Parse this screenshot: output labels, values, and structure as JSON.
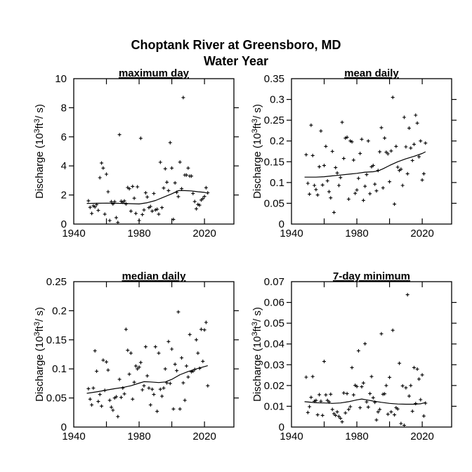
{
  "header": {
    "title_line1": "Choptank River at Greensboro, MD",
    "title_line2": "Water Year"
  },
  "colors": {
    "foreground": "#000000",
    "background": "#ffffff"
  },
  "chart_data": [
    {
      "type": "scatter",
      "title": "maximum day",
      "xlabel": "",
      "ylabel": "Discharge (10³ft³/ s)",
      "xlim": [
        1940,
        2038
      ],
      "ylim": [
        0,
        10
      ],
      "grid": false,
      "legend": "none",
      "marker": "plus",
      "xticks": [
        1960,
        1980,
        2000,
        2020
      ],
      "xtick_labels": [
        {
          "value": 1940,
          "label": "1940"
        },
        {
          "value": 1980,
          "label": "1980"
        },
        {
          "value": 2020,
          "label": "2020"
        }
      ],
      "yticks": [
        2,
        4,
        6,
        8
      ],
      "ytick_labels": [
        {
          "value": 0,
          "label": "0"
        },
        {
          "value": 2,
          "label": "2"
        },
        {
          "value": 4,
          "label": "4"
        },
        {
          "value": 6,
          "label": "6"
        },
        {
          "value": 8,
          "label": "8"
        },
        {
          "value": 10,
          "label": "10"
        }
      ],
      "start_year": 1949,
      "values": [
        1.6,
        1.15,
        0.73,
        1.25,
        1.18,
        1.34,
        0.94,
        3.19,
        4.2,
        3.85,
        0.68,
        3.43,
        2.22,
        0.24,
        1.54,
        1.38,
        1.54,
        0.44,
        0.11,
        6.15,
        1.57,
        1.5,
        1.59,
        1.38,
        2.51,
        2.43,
        0.89,
        2.59,
        1.78,
        0.73,
        2.56,
        0.24,
        5.9,
        0.65,
        0.97,
        2.15,
        1.86,
        1.13,
        1.21,
        0.89,
        2.1,
        0.97,
        1.02,
        0.68,
        4.25,
        1.13,
        2.48,
        3.8,
        2.88,
        2.3,
        5.6,
        3.85,
        0.32,
        2.83,
        2.18,
        1.89,
        4.26,
        2.43,
        8.7,
        3.37,
        3.37,
        3.85,
        3.3,
        3.3,
        2.1,
        1.55,
        1.05,
        1.35,
        1.3,
        1.65,
        1.75,
        1.9,
        2.5,
        2.15
      ],
      "trend_line": [
        [
          1948,
          1.42
        ],
        [
          1955,
          1.43
        ],
        [
          1960,
          1.44
        ],
        [
          1965,
          1.43
        ],
        [
          1970,
          1.42
        ],
        [
          1975,
          1.4
        ],
        [
          1980,
          1.38
        ],
        [
          1985,
          1.47
        ],
        [
          1990,
          1.62
        ],
        [
          1995,
          1.85
        ],
        [
          2000,
          2.08
        ],
        [
          2004,
          2.3
        ],
        [
          2008,
          2.3
        ],
        [
          2012,
          2.28
        ],
        [
          2016,
          2.22
        ],
        [
          2020,
          2.18
        ],
        [
          2022,
          2.12
        ]
      ]
    },
    {
      "type": "scatter",
      "title": "mean daily",
      "xlabel": "",
      "ylabel": "Discharge (10³ft³/ s)",
      "xlim": [
        1940,
        2038
      ],
      "ylim": [
        0,
        0.35
      ],
      "grid": false,
      "legend": "none",
      "marker": "plus",
      "xticks": [
        1960,
        1980,
        2000,
        2020
      ],
      "xtick_labels": [
        {
          "value": 1940,
          "label": "1940"
        },
        {
          "value": 1980,
          "label": "1980"
        },
        {
          "value": 2020,
          "label": "2020"
        }
      ],
      "yticks": [
        0.05,
        0.1,
        0.15,
        0.2,
        0.25,
        0.3
      ],
      "ytick_labels": [
        {
          "value": 0,
          "label": "0"
        },
        {
          "value": 0.05,
          "label": "0.05"
        },
        {
          "value": 0.1,
          "label": "0.1"
        },
        {
          "value": 0.15,
          "label": "0.15"
        },
        {
          "value": 0.2,
          "label": "0.2"
        },
        {
          "value": 0.25,
          "label": "0.25"
        },
        {
          "value": 0.3,
          "label": "0.3"
        },
        {
          "value": 0.35,
          "label": "0.35"
        }
      ],
      "start_year": 1949,
      "values": [
        0.167,
        0.098,
        0.072,
        0.238,
        0.165,
        0.093,
        0.083,
        0.07,
        0.138,
        0.224,
        0.094,
        0.141,
        0.187,
        0.104,
        0.078,
        0.063,
        0.175,
        0.028,
        0.136,
        0.123,
        0.093,
        0.112,
        0.245,
        0.158,
        0.207,
        0.209,
        0.06,
        0.2,
        0.198,
        0.154,
        0.074,
        0.082,
        0.11,
        0.17,
        0.204,
        0.057,
        0.091,
        0.119,
        0.2,
        0.073,
        0.138,
        0.141,
        0.096,
        0.08,
        0.129,
        0.174,
        0.232,
        0.087,
        0.207,
        0.173,
        0.169,
        0.102,
        0.176,
        0.305,
        0.048,
        0.187,
        0.137,
        0.129,
        0.132,
        0.093,
        0.257,
        0.186,
        0.121,
        0.231,
        0.183,
        0.153,
        0.192,
        0.262,
        0.243,
        0.162,
        0.2,
        0.106,
        0.121,
        0.195
      ],
      "trend_line": [
        [
          1948,
          0.113
        ],
        [
          1955,
          0.113
        ],
        [
          1960,
          0.114
        ],
        [
          1965,
          0.116
        ],
        [
          1970,
          0.118
        ],
        [
          1975,
          0.12
        ],
        [
          1980,
          0.122
        ],
        [
          1985,
          0.125
        ],
        [
          1990,
          0.126
        ],
        [
          1993,
          0.128
        ],
        [
          1996,
          0.133
        ],
        [
          2000,
          0.141
        ],
        [
          2005,
          0.15
        ],
        [
          2010,
          0.157
        ],
        [
          2015,
          0.163
        ],
        [
          2020,
          0.17
        ],
        [
          2022,
          0.174
        ]
      ]
    },
    {
      "type": "scatter",
      "title": "median daily",
      "xlabel": "",
      "ylabel": "Discharge (10³ft³/ s)",
      "xlim": [
        1940,
        2038
      ],
      "ylim": [
        0,
        0.25
      ],
      "grid": false,
      "legend": "none",
      "marker": "plus",
      "xticks": [
        1960,
        1980,
        2000,
        2020
      ],
      "xtick_labels": [
        {
          "value": 1940,
          "label": "1940"
        },
        {
          "value": 1980,
          "label": "1980"
        },
        {
          "value": 2020,
          "label": "2020"
        }
      ],
      "yticks": [
        0.05,
        0.1,
        0.15,
        0.2
      ],
      "ytick_labels": [
        {
          "value": 0,
          "label": "0"
        },
        {
          "value": 0.05,
          "label": "0.05"
        },
        {
          "value": 0.1,
          "label": "0.1"
        },
        {
          "value": 0.15,
          "label": "0.15"
        },
        {
          "value": 0.2,
          "label": "0.2"
        },
        {
          "value": 0.25,
          "label": "0.25"
        }
      ],
      "start_year": 1949,
      "values": [
        0.066,
        0.048,
        0.038,
        0.067,
        0.131,
        0.096,
        0.044,
        0.056,
        0.036,
        0.115,
        0.063,
        0.112,
        0.098,
        0.046,
        0.034,
        0.029,
        0.05,
        0.052,
        0.018,
        0.082,
        0.051,
        0.067,
        0.057,
        0.168,
        0.132,
        0.091,
        0.127,
        0.048,
        0.077,
        0.105,
        0.1,
        0.103,
        0.111,
        0.064,
        0.071,
        0.138,
        0.088,
        0.067,
        0.038,
        0.065,
        0.056,
        0.138,
        0.027,
        0.127,
        0.065,
        0.053,
        0.067,
        0.1,
        0.076,
        0.147,
        0.075,
        0.134,
        0.031,
        0.108,
        0.097,
        0.198,
        0.031,
        0.119,
        0.076,
        0.046,
        0.105,
        0.086,
        0.159,
        0.095,
        0.096,
        0.099,
        0.15,
        0.127,
        0.101,
        0.168,
        0.113,
        0.167,
        0.18,
        0.071
      ],
      "trend_line": [
        [
          1948,
          0.058
        ],
        [
          1955,
          0.061
        ],
        [
          1960,
          0.0635
        ],
        [
          1965,
          0.066
        ],
        [
          1970,
          0.068
        ],
        [
          1975,
          0.071
        ],
        [
          1980,
          0.0755
        ],
        [
          1983,
          0.078
        ],
        [
          1987,
          0.0775
        ],
        [
          1992,
          0.0765
        ],
        [
          1996,
          0.0775
        ],
        [
          2000,
          0.082
        ],
        [
          2005,
          0.09
        ],
        [
          2010,
          0.0955
        ],
        [
          2015,
          0.1
        ],
        [
          2020,
          0.104
        ],
        [
          2022,
          0.1055
        ]
      ]
    },
    {
      "type": "scatter",
      "title": "7-day minimum",
      "xlabel": "",
      "ylabel": "Discharge (10³ft³/ s)",
      "xlim": [
        1940,
        2038
      ],
      "ylim": [
        0,
        0.07
      ],
      "grid": false,
      "legend": "none",
      "marker": "plus",
      "xticks": [
        1960,
        1980,
        2000,
        2020
      ],
      "xtick_labels": [
        {
          "value": 1940,
          "label": "1940"
        },
        {
          "value": 1980,
          "label": "1980"
        },
        {
          "value": 2020,
          "label": "2020"
        }
      ],
      "yticks": [
        0.01,
        0.02,
        0.03,
        0.04,
        0.05,
        0.06
      ],
      "ytick_labels": [
        {
          "value": 0,
          "label": "0"
        },
        {
          "value": 0.01,
          "label": "0.01"
        },
        {
          "value": 0.02,
          "label": "0.02"
        },
        {
          "value": 0.03,
          "label": "0.03"
        },
        {
          "value": 0.04,
          "label": "0.04"
        },
        {
          "value": 0.05,
          "label": "0.05"
        },
        {
          "value": 0.06,
          "label": "0.06"
        },
        {
          "value": 0.07,
          "label": "0.07"
        }
      ],
      "start_year": 1949,
      "values": [
        0.024,
        0.007,
        0.0098,
        0.0143,
        0.0243,
        0.0124,
        0.0128,
        0.0059,
        0.0156,
        0.0124,
        0.0056,
        0.0316,
        0.0155,
        0.0128,
        0.0121,
        0.0158,
        0.0085,
        0.0064,
        0.0056,
        0.0073,
        0.0051,
        0.0042,
        0.0025,
        0.0164,
        0.0068,
        0.0161,
        0.0085,
        0.0098,
        0.0286,
        0.0155,
        0.0201,
        0.0195,
        0.0367,
        0.0093,
        0.0194,
        0.0212,
        0.0401,
        0.0121,
        0.0096,
        0.0161,
        0.0243,
        0.0141,
        0.0119,
        0.0034,
        0.0073,
        0.0085,
        0.0449,
        0.0158,
        0.016,
        0.02,
        0.0062,
        0.0239,
        0.0073,
        0.0466,
        0.0059,
        0.0093,
        0.0087,
        0.0307,
        0.0017,
        0.0198,
        0.0008,
        0.0189,
        0.0637,
        0.0149,
        0.02,
        0.0076,
        0.0286,
        0.0113,
        0.0279,
        0.0231,
        0.0132,
        0.0251,
        0.0053,
        0.0115
      ],
      "trend_line": [
        [
          1948,
          0.0122
        ],
        [
          1955,
          0.0117
        ],
        [
          1960,
          0.0116
        ],
        [
          1965,
          0.0114
        ],
        [
          1970,
          0.0116
        ],
        [
          1975,
          0.0122
        ],
        [
          1980,
          0.0131
        ],
        [
          1983,
          0.0135
        ],
        [
          1986,
          0.0131
        ],
        [
          1990,
          0.0125
        ],
        [
          1995,
          0.0119
        ],
        [
          2000,
          0.0114
        ],
        [
          2005,
          0.0111
        ],
        [
          2010,
          0.011
        ],
        [
          2015,
          0.011
        ],
        [
          2019,
          0.0112
        ],
        [
          2022,
          0.0118
        ]
      ]
    }
  ]
}
